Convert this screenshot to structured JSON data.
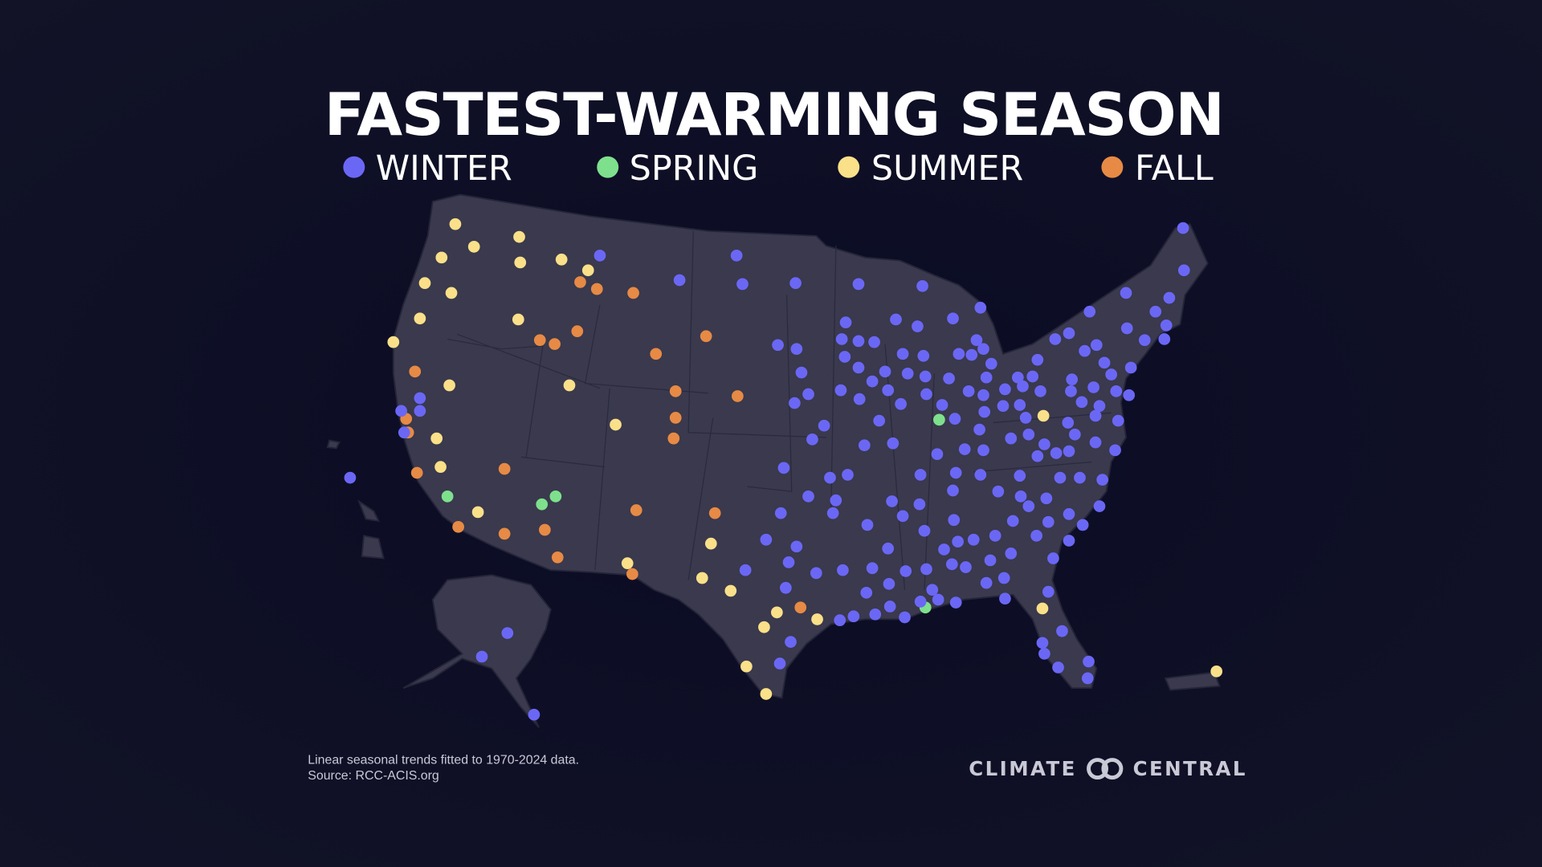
{
  "header": {
    "title": "FASTEST-WARMING SEASON"
  },
  "legend": {
    "items": [
      "WINTER",
      "SPRING",
      "SUMMER",
      "FALL"
    ]
  },
  "footnote": {
    "lines": [
      "Linear seasonal trends fitted to 1970-2024 data.",
      "Source: RCC-ACIS.org"
    ]
  },
  "logo": {
    "left": "CLIMATE",
    "right": "CENTRAL"
  }
}
